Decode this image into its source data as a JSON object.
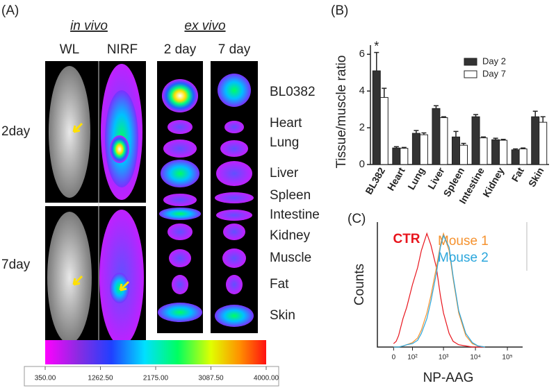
{
  "panel_a": {
    "label": "(A)",
    "in_vivo": "in vivo",
    "ex_vivo": "ex vivo",
    "columns": [
      "WL",
      "NIRF",
      "2 day",
      "7 day"
    ],
    "rows": [
      "2day",
      "7day"
    ],
    "organs": [
      "BL0382",
      "Heart",
      "Lung",
      "Liver",
      "Spleen",
      "Intestine",
      "Kidney",
      "Muscle",
      "Fat",
      "Skin"
    ],
    "colorbar": {
      "lim": [
        350,
        4000
      ],
      "ticks": [
        {
          "value": 350,
          "label": "350.00"
        },
        {
          "value": 1262.5,
          "label": "1262.50"
        },
        {
          "value": 2175,
          "label": "2175.00"
        },
        {
          "value": 3087.5,
          "label": "3087.50"
        },
        {
          "value": 4000,
          "label": "4000.00"
        }
      ]
    }
  },
  "chart_data": [
    {
      "type": "bar",
      "panel_label": "(B)",
      "y_label": "Tissue/muscle ratio",
      "annotation": "*",
      "categories": [
        "BL382",
        "Heart",
        "Lung",
        "Liver",
        "Spleen",
        "Intestine",
        "Kidney",
        "Fat",
        "Skin"
      ],
      "series": [
        {
          "name": "Day 2",
          "color": "#333333",
          "values": [
            5.1,
            0.9,
            1.7,
            3.05,
            1.5,
            2.6,
            1.35,
            0.8,
            2.6
          ],
          "errors": [
            1.0,
            0.07,
            0.15,
            0.15,
            0.3,
            0.12,
            0.08,
            0.05,
            0.3
          ]
        },
        {
          "name": "Day 7",
          "color": "#ffffff",
          "values": [
            3.65,
            0.88,
            1.62,
            2.55,
            1.05,
            1.45,
            1.32,
            0.85,
            2.3
          ],
          "errors": [
            0.5,
            0.05,
            0.1,
            0.05,
            0.1,
            0.05,
            0.05,
            0.05,
            0.3
          ]
        }
      ],
      "ylim": [
        0,
        6.5
      ],
      "yticks": [
        0,
        2,
        4,
        6
      ]
    },
    {
      "type": "line",
      "panel_label": "(C)",
      "x_label": "NP-AAG",
      "y_label": "Counts",
      "xscale": "asinh",
      "asinh_width": 55,
      "x": [
        0,
        10,
        20,
        40,
        60,
        100,
        150,
        200,
        300,
        400,
        600,
        800,
        1000,
        1500,
        2000,
        3000,
        5000,
        8000,
        12000,
        20000
      ],
      "series": [
        {
          "name": "CTR",
          "color": "#e8141c",
          "values": [
            3,
            5,
            10,
            25,
            35,
            55,
            70,
            85,
            100,
            90,
            70,
            45,
            30,
            12,
            5,
            2,
            1,
            0,
            0,
            0
          ]
        },
        {
          "name": "Mouse 1",
          "color": "#f5922f",
          "values": [
            0,
            0,
            0,
            1,
            2,
            4,
            8,
            15,
            30,
            45,
            70,
            90,
            100,
            85,
            60,
            30,
            10,
            3,
            1,
            0
          ]
        },
        {
          "name": "Mouse 2",
          "color": "#2aa6dc",
          "values": [
            0,
            0,
            0,
            1,
            2,
            3,
            6,
            12,
            25,
            40,
            65,
            88,
            98,
            88,
            62,
            32,
            12,
            4,
            1,
            0
          ]
        }
      ],
      "xlim": [
        -80,
        300000
      ],
      "xticks": [
        {
          "value": 0,
          "label": "0"
        },
        {
          "value": 100,
          "label": "10²"
        },
        {
          "value": 1000,
          "label": "10³"
        },
        {
          "value": 10000,
          "label": "10⁴"
        },
        {
          "value": 100000,
          "label": "10⁵"
        }
      ],
      "ylim": [
        0,
        110
      ]
    }
  ]
}
